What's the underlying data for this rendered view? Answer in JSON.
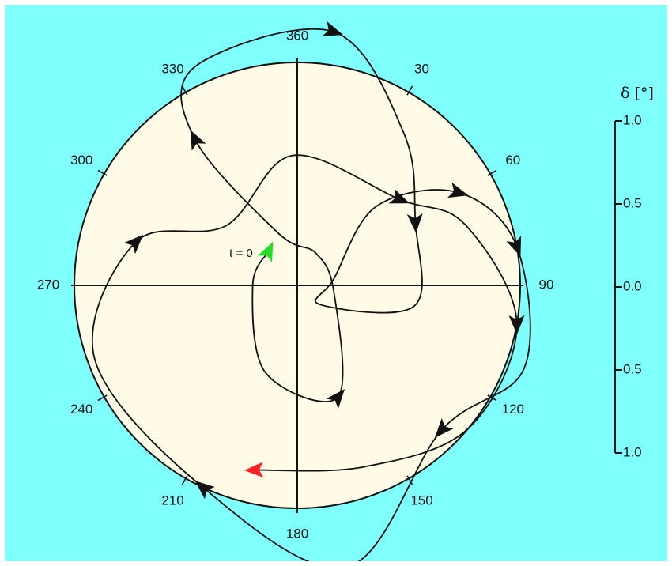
{
  "chart_data": {
    "type": "polar-trajectory",
    "angle_unit": "degrees",
    "angle_ticks": [
      "360",
      "30",
      "60",
      "90",
      "120",
      "150",
      "180",
      "210",
      "240",
      "270",
      "300",
      "330"
    ],
    "radial_label": "δ [°]",
    "radial_range": [
      0,
      1.0
    ],
    "scale_ticks": [
      "1.0",
      "0.5",
      "0.0",
      "0.5",
      "1.0"
    ],
    "start_label": "t = 0",
    "colors": {
      "background": "#80ffff",
      "disk": "#fffbe6",
      "trajectory": "#111111",
      "start_marker": "#22dd22",
      "end_marker": "#ff2222"
    },
    "path": [
      {
        "angle": 320,
        "r": 0.12
      },
      {
        "angle": 270,
        "r": 0.12
      },
      {
        "angle": 200,
        "r": 0.25
      },
      {
        "angle": 160,
        "r": 0.32
      },
      {
        "angle": 100,
        "r": 0.1
      },
      {
        "angle": 30,
        "r": 0.1
      },
      {
        "angle": 340,
        "r": 0.15
      },
      {
        "angle": 325,
        "r": 0.48
      },
      {
        "angle": 335,
        "r": 0.65
      },
      {
        "angle": 8,
        "r": 0.69
      },
      {
        "angle": 35,
        "r": 0.5
      },
      {
        "angle": 62,
        "r": 0.36
      },
      {
        "angle": 100,
        "r": 0.32
      },
      {
        "angle": 130,
        "r": 0.08
      },
      {
        "angle": 80,
        "r": 0.1
      },
      {
        "angle": 45,
        "r": 0.3
      },
      {
        "angle": 60,
        "r": 0.5
      },
      {
        "angle": 80,
        "r": 0.6
      },
      {
        "angle": 110,
        "r": 0.65
      },
      {
        "angle": 135,
        "r": 0.55
      },
      {
        "angle": 170,
        "r": 0.77
      },
      {
        "angle": 205,
        "r": 0.6
      },
      {
        "angle": 250,
        "r": 0.58
      },
      {
        "angle": 285,
        "r": 0.45
      },
      {
        "angle": 310,
        "r": 0.25
      },
      {
        "angle": 358,
        "r": 0.35
      },
      {
        "angle": 50,
        "r": 0.36
      },
      {
        "angle": 70,
        "r": 0.48
      },
      {
        "angle": 100,
        "r": 0.6
      },
      {
        "angle": 130,
        "r": 0.6
      },
      {
        "angle": 160,
        "r": 0.52
      },
      {
        "angle": 193,
        "r": 0.51
      }
    ],
    "arrows_at": [
      3,
      7,
      9,
      11,
      16,
      17,
      19,
      21,
      23,
      26,
      28
    ]
  }
}
